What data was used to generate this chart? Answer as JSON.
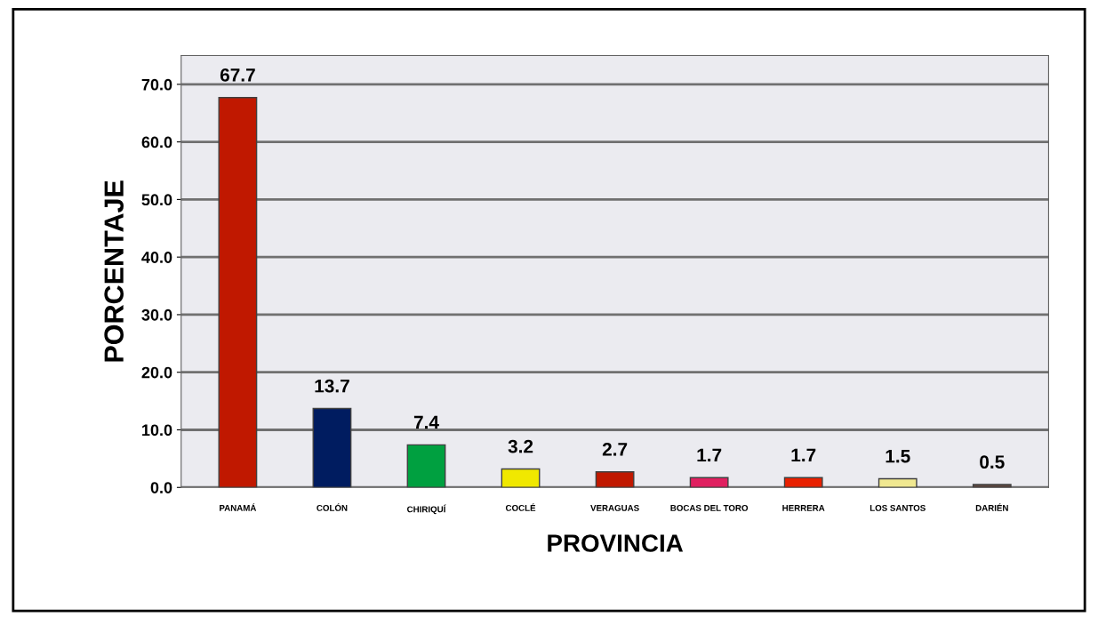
{
  "chart_data": {
    "type": "bar",
    "xlabel": "PROVINCIA",
    "ylabel": "PORCENTAJE",
    "categories": [
      "PANAMÁ",
      "COLÓN",
      "CHIRIQUÍ",
      "COCLÉ",
      "VERAGUAS",
      "BOCAS DEL TORO",
      "HERRERA",
      "LOS SANTOS",
      "DARIÉN"
    ],
    "values": [
      67.7,
      13.7,
      7.4,
      3.2,
      2.7,
      1.7,
      1.7,
      1.5,
      0.5
    ],
    "colors": [
      "#c01800",
      "#001c60",
      "#00a040",
      "#f0e800",
      "#c01800",
      "#e02060",
      "#e82000",
      "#f0e890",
      "#604840"
    ],
    "ylim": [
      0,
      75
    ],
    "yticks": [
      {
        "value": 0,
        "label": "0.0"
      },
      {
        "value": 10,
        "label": "10.0"
      },
      {
        "value": 20,
        "label": "20.0"
      },
      {
        "value": 30,
        "label": "30.0"
      },
      {
        "value": 40,
        "label": "40.0"
      },
      {
        "value": 50,
        "label": "50.0"
      },
      {
        "value": 60,
        "label": "60.0"
      },
      {
        "value": 70,
        "label": "70.0"
      }
    ],
    "grid": "y",
    "data_labels": true
  }
}
